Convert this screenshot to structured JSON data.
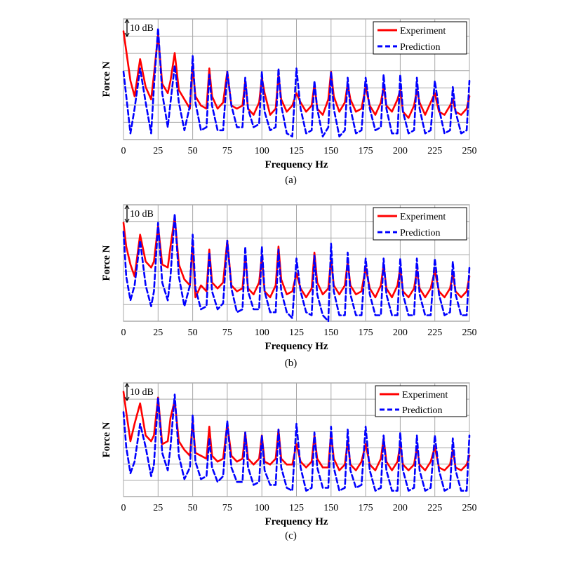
{
  "figure": {
    "background": "#ffffff"
  },
  "chart_data": [
    {
      "type": "line",
      "caption": "(a)",
      "xlabel": "Frequency Hz",
      "ylabel": "Force  N",
      "xlim": [
        0,
        250
      ],
      "xticks": [
        "0",
        "25",
        "50",
        "75",
        "100",
        "125",
        "150",
        "175",
        "200",
        "225",
        "250"
      ],
      "grid": true,
      "scale_note": "10 dB",
      "legend_position": "top-right",
      "x": [
        0,
        5,
        8,
        12,
        16,
        20,
        22,
        25,
        28,
        32,
        34,
        37,
        40,
        44,
        48,
        50,
        52,
        56,
        60,
        62,
        64,
        68,
        72,
        75,
        78,
        82,
        86,
        88,
        90,
        94,
        98,
        100,
        102,
        106,
        110,
        112,
        114,
        118,
        122,
        125,
        128,
        132,
        136,
        138,
        140,
        144,
        148,
        150,
        152,
        156,
        160,
        162,
        164,
        168,
        172,
        175,
        178,
        182,
        186,
        188,
        190,
        194,
        198,
        200,
        202,
        206,
        210,
        212,
        214,
        218,
        222,
        225,
        228,
        232,
        236,
        238,
        240,
        244,
        248,
        250
      ],
      "series": [
        {
          "name": "Experiment",
          "color": "#ff0000",
          "style": "solid",
          "values": [
            30,
            14,
            9,
            21,
            12,
            8,
            16,
            29,
            13,
            10,
            14,
            23,
            11,
            8,
            5,
            19,
            9,
            6,
            5,
            18,
            9,
            5,
            7,
            17,
            6,
            5,
            6,
            14,
            5,
            3,
            7,
            15,
            10,
            3,
            5,
            16,
            8,
            4,
            6,
            10,
            7,
            4,
            6,
            13,
            5,
            3,
            8,
            17,
            9,
            4,
            7,
            13,
            8,
            4,
            5,
            12,
            6,
            3,
            7,
            12,
            6,
            4,
            8,
            11,
            4,
            2,
            6,
            11,
            7,
            3,
            7,
            10,
            4,
            3,
            6,
            8,
            4,
            3,
            5,
            9
          ]
        },
        {
          "name": "Prediction",
          "color": "#0000ff",
          "style": "dashed",
          "values": [
            17,
            -3,
            5,
            18,
            7,
            -3,
            12,
            31,
            10,
            -1,
            7,
            19,
            7,
            -2,
            6,
            22,
            7,
            -2,
            -1,
            16,
            6,
            -2,
            -2,
            17,
            6,
            -1,
            -1,
            15,
            5,
            -1,
            0,
            17,
            4,
            -2,
            -1,
            18,
            6,
            -3,
            -4,
            18,
            5,
            -3,
            -2,
            14,
            5,
            -4,
            -1,
            17,
            5,
            -4,
            -2,
            15,
            5,
            -3,
            -2,
            15,
            5,
            -2,
            -1,
            16,
            5,
            -3,
            -3,
            16,
            4,
            -3,
            -2,
            15,
            5,
            -3,
            -2,
            14,
            5,
            -3,
            -2,
            12,
            4,
            -3,
            -2,
            14
          ]
        }
      ]
    },
    {
      "type": "line",
      "caption": "(b)",
      "xlabel": "Frequency Hz",
      "ylabel": "Force  N",
      "xlim": [
        0,
        250
      ],
      "xticks": [
        "0",
        "25",
        "50",
        "75",
        "100",
        "125",
        "150",
        "175",
        "200",
        "225",
        "250"
      ],
      "grid": true,
      "scale_note": "10 dB",
      "legend_position": "top-right",
      "x": [
        0,
        2,
        5,
        8,
        12,
        16,
        20,
        22,
        25,
        28,
        32,
        34,
        37,
        40,
        44,
        48,
        50,
        52,
        56,
        60,
        62,
        64,
        68,
        72,
        75,
        78,
        82,
        86,
        88,
        90,
        94,
        98,
        100,
        102,
        106,
        110,
        112,
        114,
        118,
        122,
        125,
        128,
        132,
        136,
        138,
        140,
        144,
        148,
        150,
        152,
        156,
        160,
        162,
        164,
        168,
        172,
        175,
        178,
        182,
        186,
        188,
        190,
        194,
        198,
        200,
        202,
        206,
        210,
        212,
        214,
        218,
        222,
        225,
        228,
        232,
        236,
        238,
        240,
        244,
        248,
        250
      ],
      "series": [
        {
          "name": "Experiment",
          "color": "#ff0000",
          "style": "solid",
          "values": [
            28,
            20,
            14,
            10,
            24,
            15,
            13,
            15,
            27,
            14,
            13,
            20,
            30,
            14,
            9,
            7,
            21,
            3,
            7,
            5,
            19,
            8,
            6,
            8,
            22,
            7,
            5,
            6,
            17,
            6,
            4,
            8,
            17,
            5,
            3,
            7,
            20,
            9,
            4,
            5,
            11,
            6,
            3,
            6,
            18,
            8,
            4,
            6,
            16,
            7,
            4,
            7,
            15,
            7,
            4,
            5,
            13,
            6,
            3,
            7,
            14,
            6,
            3,
            7,
            13,
            5,
            3,
            6,
            12,
            6,
            3,
            6,
            12,
            5,
            3,
            6,
            11,
            5,
            3,
            5,
            10
          ]
        },
        {
          "name": "Prediction",
          "color": "#0000ff",
          "style": "dashed",
          "values": [
            25,
            10,
            2,
            7,
            22,
            7,
            0,
            5,
            28,
            8,
            2,
            10,
            31,
            10,
            0,
            7,
            24,
            6,
            -1,
            0,
            18,
            5,
            -1,
            1,
            22,
            6,
            -2,
            -1,
            20,
            5,
            -1,
            -1,
            20,
            5,
            -2,
            -2,
            19,
            5,
            -2,
            -4,
            16,
            5,
            -2,
            -3,
            17,
            4,
            -3,
            -5,
            21,
            5,
            -3,
            -3,
            18,
            4,
            -3,
            -3,
            16,
            4,
            -3,
            -3,
            16,
            4,
            -3,
            -3,
            16,
            4,
            -3,
            -3,
            16,
            4,
            -3,
            -3,
            16,
            4,
            -3,
            -2,
            15,
            4,
            -3,
            -3,
            13
          ]
        }
      ]
    },
    {
      "type": "line",
      "caption": "(c)",
      "xlabel": "Frequency Hz",
      "ylabel": "Force  N",
      "xlim": [
        0,
        250
      ],
      "xticks": [
        "0",
        "25",
        "50",
        "75",
        "100",
        "125",
        "150",
        "175",
        "200",
        "225",
        "250"
      ],
      "grid": true,
      "scale_note": "10 dB",
      "legend_position": "top-right",
      "x": [
        0,
        2,
        5,
        8,
        12,
        16,
        20,
        22,
        25,
        28,
        32,
        34,
        37,
        40,
        44,
        48,
        50,
        52,
        56,
        60,
        62,
        64,
        68,
        72,
        75,
        78,
        82,
        86,
        88,
        90,
        94,
        98,
        100,
        102,
        106,
        110,
        112,
        114,
        118,
        122,
        125,
        128,
        132,
        136,
        138,
        140,
        144,
        148,
        150,
        152,
        156,
        160,
        162,
        164,
        168,
        172,
        175,
        178,
        182,
        186,
        188,
        190,
        194,
        198,
        200,
        202,
        206,
        210,
        212,
        214,
        218,
        222,
        225,
        228,
        232,
        236,
        238,
        240,
        244,
        248,
        250
      ],
      "series": [
        {
          "name": "Experiment",
          "color": "#ff0000",
          "style": "solid",
          "values": [
            31,
            24,
            14,
            20,
            27,
            16,
            14,
            16,
            29,
            13,
            14,
            22,
            28,
            14,
            11,
            9,
            21,
            10,
            9,
            8,
            19,
            9,
            7,
            8,
            20,
            9,
            7,
            8,
            17,
            8,
            6,
            8,
            16,
            7,
            6,
            8,
            18,
            8,
            6,
            6,
            13,
            7,
            5,
            7,
            16,
            8,
            5,
            5,
            17,
            8,
            4,
            6,
            14,
            6,
            4,
            7,
            13,
            6,
            4,
            8,
            15,
            7,
            4,
            7,
            13,
            6,
            4,
            6,
            12,
            6,
            4,
            7,
            12,
            5,
            4,
            6,
            11,
            5,
            4,
            6,
            9
          ]
        },
        {
          "name": "Prediction",
          "color": "#0000ff",
          "style": "dashed",
          "values": [
            24,
            12,
            3,
            7,
            20,
            12,
            2,
            6,
            29,
            10,
            4,
            12,
            30,
            9,
            1,
            5,
            23,
            7,
            1,
            2,
            15,
            5,
            0,
            2,
            21,
            5,
            0,
            0,
            17,
            5,
            -1,
            0,
            16,
            4,
            -1,
            -1,
            18,
            5,
            -2,
            -3,
            20,
            5,
            -3,
            -2,
            17,
            5,
            -2,
            -2,
            19,
            5,
            -3,
            -2,
            18,
            4,
            -2,
            -1,
            19,
            4,
            -3,
            -2,
            16,
            4,
            -3,
            -3,
            17,
            4,
            -3,
            -2,
            16,
            4,
            -3,
            -2,
            16,
            4,
            -3,
            -2,
            15,
            4,
            -3,
            -3,
            16
          ]
        }
      ]
    }
  ]
}
